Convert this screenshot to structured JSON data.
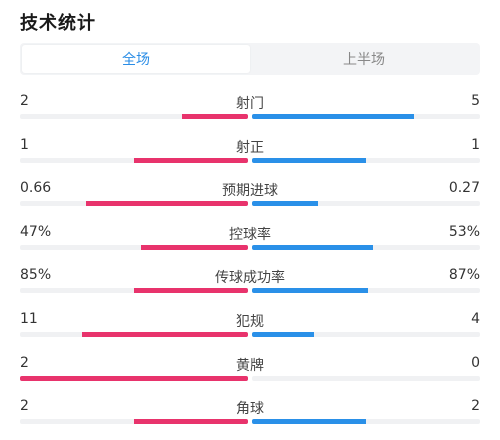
{
  "header": {
    "title": "技术统计"
  },
  "tabs": [
    {
      "label": "全场",
      "active": true
    },
    {
      "label": "上半场",
      "active": false
    }
  ],
  "colors": {
    "home": "#e8336c",
    "away": "#2a90e8",
    "track": "#f0f1f3",
    "tab_active": "#2a8de6"
  },
  "stats": [
    {
      "label": "射门",
      "left": "2",
      "right": "5",
      "left_share": 0.29,
      "right_share": 0.71
    },
    {
      "label": "射正",
      "left": "1",
      "right": "1",
      "left_share": 0.5,
      "right_share": 0.5
    },
    {
      "label": "预期进球",
      "left": "0.66",
      "right": "0.27",
      "left_share": 0.71,
      "right_share": 0.29
    },
    {
      "label": "控球率",
      "left": "47%",
      "right": "53%",
      "left_share": 0.47,
      "right_share": 0.53
    },
    {
      "label": "传球成功率",
      "left": "85%",
      "right": "87%",
      "left_share": 0.5,
      "right_share": 0.51
    },
    {
      "label": "犯规",
      "left": "11",
      "right": "4",
      "left_share": 0.73,
      "right_share": 0.27
    },
    {
      "label": "黄牌",
      "left": "2",
      "right": "0",
      "left_share": 1.0,
      "right_share": 0.0
    },
    {
      "label": "角球",
      "left": "2",
      "right": "2",
      "left_share": 0.5,
      "right_share": 0.5
    }
  ]
}
